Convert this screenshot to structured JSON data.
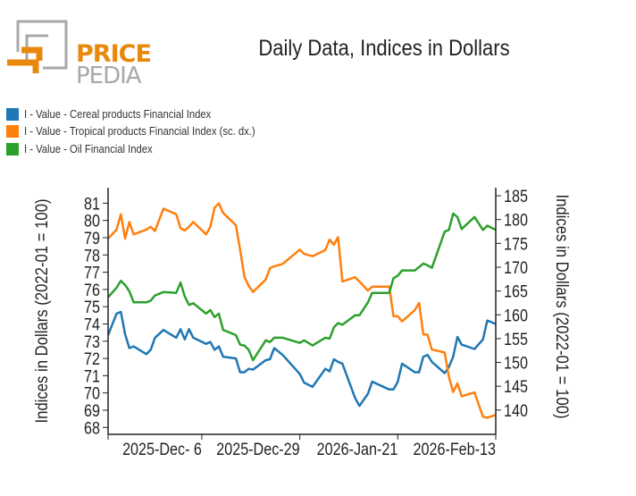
{
  "logo": {
    "text_top": "PRICE",
    "text_bottom": "PEDIA",
    "colors": {
      "orange": "#e8890c",
      "grey": "#a8a8a8"
    }
  },
  "chart_data": {
    "type": "line",
    "title": "Daily Data, Indices in Dollars",
    "ylabel_left": "Indices in Dollars (2022-01 = 100)",
    "ylabel_right": "Indices in Dollars (2022-01 = 100)",
    "x_range": [
      "2025-11-14",
      "2026-02-13"
    ],
    "x_ticks": [
      {
        "date": "2025-12-06",
        "label": "2025-Dec- 6"
      },
      {
        "date": "2025-12-29",
        "label": "2025-Dec-29"
      },
      {
        "date": "2026-01-21",
        "label": "2026-Jan-21"
      },
      {
        "date": "2026-02-13",
        "label": "2026-Feb-13"
      }
    ],
    "ylim_left": [
      67.6,
      81.9
    ],
    "yticks_left": [
      68,
      69,
      70,
      71,
      72,
      73,
      74,
      75,
      76,
      77,
      78,
      79,
      80,
      81
    ],
    "ylim_right": [
      134.9,
      186.7
    ],
    "yticks_right": [
      140,
      145,
      150,
      155,
      160,
      165,
      170,
      175,
      180,
      185
    ],
    "grid": false,
    "legend_position": "top-left",
    "dates": [
      "2025-11-14",
      "2025-11-16",
      "2025-11-17",
      "2025-11-18",
      "2025-11-19",
      "2025-11-20",
      "2025-11-23",
      "2025-11-24",
      "2025-11-25",
      "2025-11-27",
      "2025-11-30",
      "2025-12-01",
      "2025-12-02",
      "2025-12-03",
      "2025-12-04",
      "2025-12-07",
      "2025-12-08",
      "2025-12-09",
      "2025-12-10",
      "2025-12-11",
      "2025-12-14",
      "2025-12-15",
      "2025-12-16",
      "2025-12-17",
      "2025-12-18",
      "2025-12-21",
      "2025-12-22",
      "2025-12-23",
      "2025-12-25",
      "2025-12-29",
      "2025-12-30",
      "2026-01-01",
      "2026-01-04",
      "2026-01-05",
      "2026-01-06",
      "2026-01-07",
      "2026-01-08",
      "2026-01-11",
      "2026-01-12",
      "2026-01-14",
      "2026-01-15",
      "2026-01-19",
      "2026-01-20",
      "2026-01-21",
      "2026-01-22",
      "2026-01-25",
      "2026-01-26",
      "2026-01-27",
      "2026-01-28",
      "2026-01-29",
      "2026-02-01",
      "2026-02-02",
      "2026-02-03",
      "2026-02-04",
      "2026-02-05",
      "2026-02-08",
      "2026-02-10",
      "2026-02-11",
      "2026-02-13"
    ],
    "series": [
      {
        "name": "I - Value - Cereal products Financial Index",
        "axis": "left",
        "color": "#1f77b4",
        "values": [
          73.35,
          74.6,
          74.7,
          73.4,
          72.6,
          72.7,
          72.25,
          72.5,
          73.2,
          73.65,
          73.2,
          73.7,
          73.1,
          73.7,
          73.2,
          72.85,
          72.95,
          72.5,
          72.7,
          72.1,
          72.0,
          71.2,
          71.2,
          71.4,
          71.35,
          71.9,
          71.95,
          72.6,
          72.2,
          71.1,
          70.6,
          70.35,
          71.4,
          71.25,
          71.95,
          71.8,
          71.7,
          69.7,
          69.25,
          69.95,
          70.65,
          70.2,
          70.2,
          70.65,
          71.7,
          71.2,
          71.2,
          72.1,
          72.2,
          71.8,
          71.15,
          71.5,
          72.1,
          73.25,
          72.8,
          72.55,
          73.1,
          74.2,
          74.0
        ]
      },
      {
        "name": "I - Value - Tropical products Financial Index (sc. dx.)",
        "axis": "right",
        "color": "#ff7f0e",
        "values": [
          176.0,
          177.9,
          181.1,
          176.0,
          179.5,
          176.9,
          177.9,
          178.5,
          177.6,
          182.3,
          181.1,
          178.2,
          177.7,
          178.5,
          179.5,
          176.9,
          178.5,
          182.5,
          183.4,
          181.4,
          178.8,
          173.7,
          168.0,
          166.1,
          164.8,
          167.4,
          169.8,
          170.2,
          170.7,
          173.7,
          172.8,
          172.3,
          173.6,
          175.8,
          174.7,
          176.3,
          167.0,
          167.9,
          167.0,
          165.1,
          165.9,
          165.9,
          159.7,
          159.7,
          158.6,
          161.0,
          162.5,
          155.9,
          155.8,
          152.7,
          152.1,
          147.0,
          143.8,
          145.6,
          142.9,
          143.7,
          138.6,
          138.4,
          139.0
        ]
      },
      {
        "name": "I - Value - Oil Financial Index",
        "axis": "left",
        "color": "#2ca02c",
        "values": [
          75.55,
          76.1,
          76.5,
          76.25,
          75.9,
          75.25,
          75.25,
          75.35,
          75.65,
          75.85,
          75.8,
          76.4,
          75.6,
          75.1,
          75.2,
          74.6,
          74.8,
          74.4,
          74.6,
          73.65,
          73.35,
          72.8,
          72.75,
          72.5,
          71.9,
          73.05,
          72.95,
          73.2,
          73.2,
          72.9,
          73.05,
          72.75,
          73.2,
          73.15,
          73.8,
          74.05,
          73.95,
          74.5,
          74.5,
          75.25,
          75.8,
          75.8,
          76.65,
          76.8,
          77.1,
          77.1,
          77.3,
          77.5,
          77.4,
          77.25,
          79.35,
          79.45,
          80.4,
          80.2,
          79.5,
          80.2,
          79.45,
          79.7,
          79.45
        ]
      }
    ]
  }
}
